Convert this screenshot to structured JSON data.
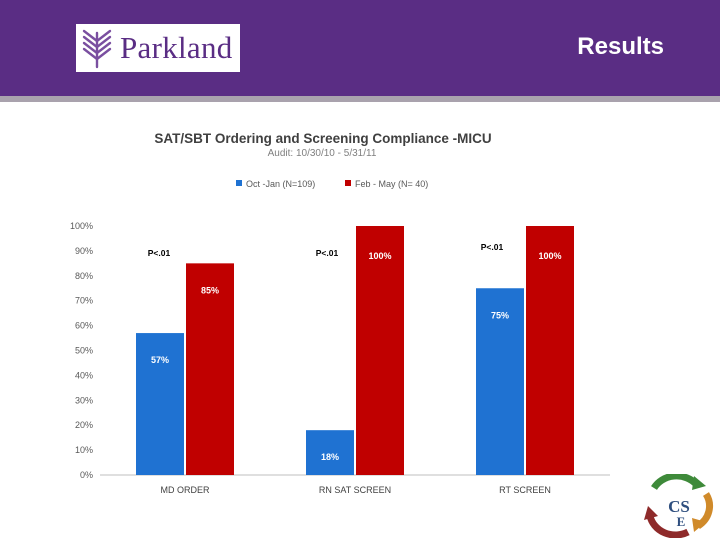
{
  "header": {
    "brand": "Parkland",
    "title": "Results",
    "background": "#5a2d84",
    "rule_color": "#a9a2ad"
  },
  "chart_data": {
    "type": "bar",
    "title": "SAT/SBT Ordering and Screening Compliance -MICU",
    "subtitle": "Audit: 10/30/10 - 5/31/11",
    "categories": [
      "MD ORDER",
      "RN SAT SCREEN",
      "RT SCREEN"
    ],
    "series": [
      {
        "name": "Oct -Jan (N=109)",
        "color": "#1f72d2",
        "values": [
          57,
          18,
          75
        ],
        "labels": [
          "57%",
          "18%",
          "75%"
        ]
      },
      {
        "name": "Feb - May (N= 40)",
        "color": "#c00000",
        "values": [
          85,
          100,
          100
        ],
        "labels": [
          "85%",
          "100%",
          "100%"
        ]
      }
    ],
    "annotations": [
      "P<.01",
      "P<.01",
      "P<.01"
    ],
    "yticks": [
      "0%",
      "10%",
      "20%",
      "30%",
      "40%",
      "50%",
      "60%",
      "70%",
      "80%",
      "90%",
      "100%"
    ],
    "ylim": [
      0,
      100
    ],
    "xlabel": "",
    "ylabel": "",
    "legend_position": "top-center"
  },
  "icons": {
    "parkland_logo": "parkland-logo-icon",
    "cse_logo": "cse-logo-icon"
  }
}
